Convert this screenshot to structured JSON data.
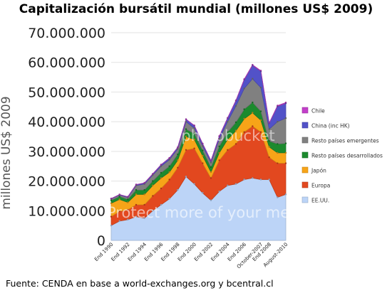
{
  "chart_data": {
    "type": "area",
    "stacked": true,
    "title": "Capitalización bursátil mundial (millones US$ 2009)",
    "ylabel": "millones US$ 2009",
    "xlabel": "",
    "ylim": [
      0,
      70000000
    ],
    "yticks": [
      "0",
      "10.000.000",
      "20.000.000",
      "30.000.000",
      "40.000.000",
      "50.000.000",
      "60.000.000",
      "70.000.000"
    ],
    "ytick_values": [
      0,
      10000000,
      20000000,
      30000000,
      40000000,
      50000000,
      60000000,
      70000000
    ],
    "x": [
      "1990",
      "1991",
      "1992",
      "1993",
      "1994",
      "1995",
      "1996",
      "1997",
      "1998",
      "1999",
      "2000",
      "2001",
      "2002",
      "2003",
      "2004",
      "2005",
      "2006",
      "2007",
      "Oct-2007",
      "2008",
      "2009",
      "Aug-2010"
    ],
    "xtick_labels": [
      "End 1990",
      "End 1992",
      "End 1994",
      "End 1996",
      "End 1998",
      "End 2000",
      "End 2002",
      "End 2004",
      "End 2006",
      "October-2007",
      "End 2008",
      "August-2010"
    ],
    "xtick_index": [
      0,
      2,
      4,
      6,
      8,
      10,
      12,
      14,
      16,
      18,
      19,
      21
    ],
    "legend_position": "right",
    "grid": true,
    "series": [
      {
        "name": "EE.UU.",
        "color": "#bcd4f7",
        "values": [
          5000000,
          6500000,
          7000000,
          8000000,
          7500000,
          10000000,
          12000000,
          14000000,
          17000000,
          21500000,
          19000000,
          16000000,
          13500000,
          16500000,
          18500000,
          19000000,
          20500000,
          21000000,
          20500000,
          20500000,
          14500000,
          15500000
        ]
      },
      {
        "name": "Europa",
        "color": "#e2481f",
        "values": [
          3000000,
          3300000,
          3300000,
          4000000,
          4500000,
          5000000,
          5500000,
          6500000,
          7500000,
          9000000,
          12000000,
          10000000,
          7500000,
          10500000,
          12000000,
          13500000,
          16000000,
          17500000,
          16000000,
          7500000,
          11500000,
          10500000
        ]
      },
      {
        "name": "Japón",
        "color": "#f7a418",
        "values": [
          4500000,
          4000000,
          2500000,
          3500000,
          3500000,
          3500000,
          3500000,
          2500000,
          2500000,
          4500000,
          3000000,
          2500000,
          2000000,
          2500000,
          3500000,
          4500000,
          4500000,
          4500000,
          4000000,
          3500000,
          3500000,
          3500000
        ]
      },
      {
        "name": "Resto países desarrollados",
        "color": "#1c8a2e",
        "values": [
          1000000,
          1000000,
          1000000,
          1500000,
          1500000,
          1500000,
          1800000,
          2000000,
          2000000,
          2500000,
          2000000,
          1800000,
          1700000,
          2200000,
          2500000,
          2800000,
          3200000,
          3500000,
          3000000,
          2000000,
          3000000,
          3200000
        ]
      },
      {
        "name": "Resto países emergentes",
        "color": "#808080",
        "values": [
          500000,
          500000,
          700000,
          1500000,
          2000000,
          2000000,
          2200000,
          2200000,
          1800000,
          2500000,
          1800000,
          1500000,
          1500000,
          2500000,
          3500000,
          5500000,
          7000000,
          8000000,
          8000000,
          4000000,
          7500000,
          8500000
        ]
      },
      {
        "name": "China (inc HK)",
        "color": "#5252c8",
        "values": [
          100000,
          150000,
          200000,
          300000,
          350000,
          400000,
          500000,
          550000,
          550000,
          800000,
          900000,
          800000,
          700000,
          900000,
          1200000,
          1800000,
          3000000,
          4500000,
          5500000,
          2000000,
          5200000,
          5000000
        ]
      },
      {
        "name": "Chile",
        "color": "#c23fc9",
        "values": [
          10000,
          15000,
          20000,
          30000,
          40000,
          40000,
          40000,
          40000,
          30000,
          50000,
          50000,
          40000,
          40000,
          60000,
          100000,
          120000,
          160000,
          200000,
          220000,
          100000,
          230000,
          260000
        ]
      }
    ]
  },
  "watermark_text": "Protect more of your memories for less!",
  "watermark_brand": "photobucket",
  "source_note": "Fuente: CENDA en base a world-exchanges.org y bcentral.cl"
}
